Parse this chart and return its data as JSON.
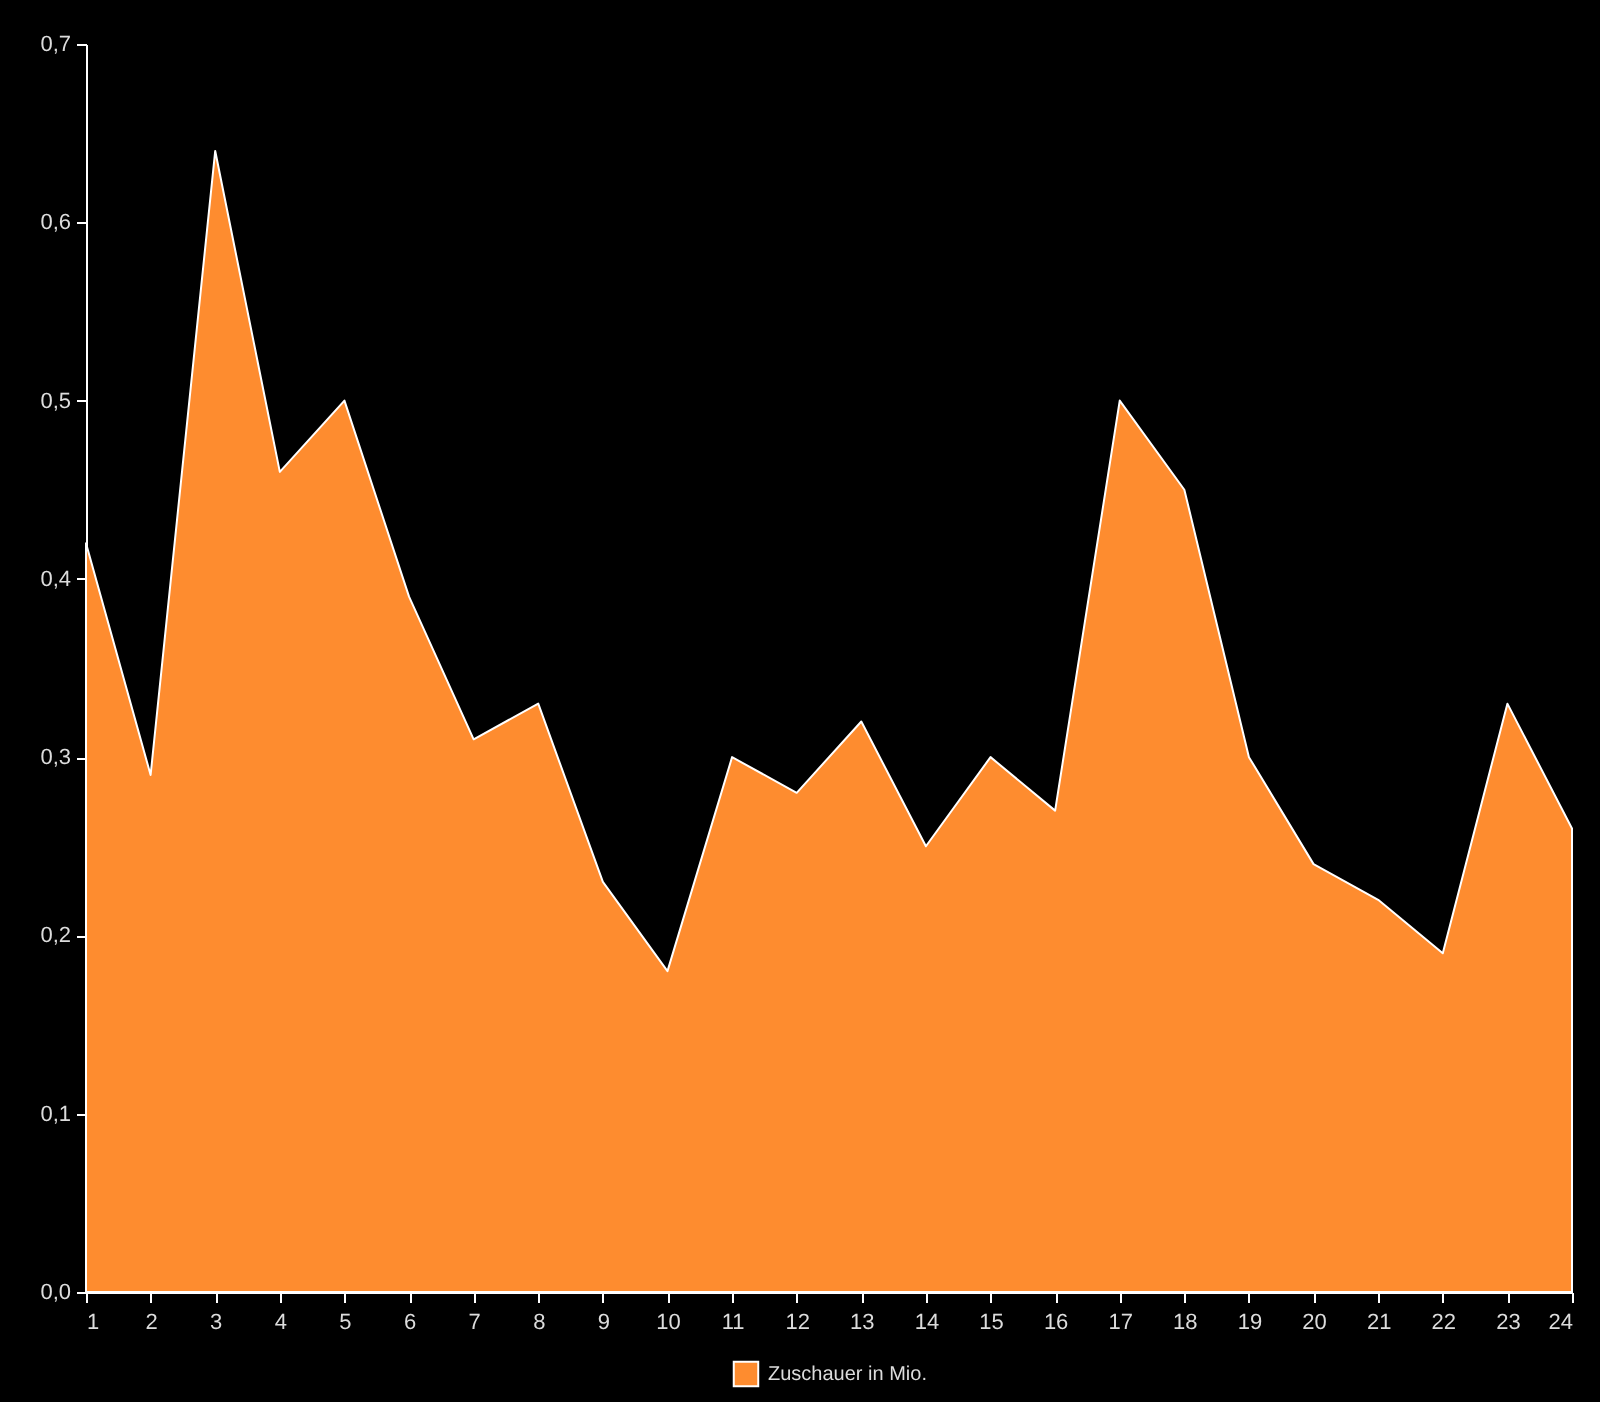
{
  "chart_data": {
    "type": "area",
    "x": [
      1,
      2,
      3,
      4,
      5,
      6,
      7,
      8,
      9,
      10,
      11,
      12,
      13,
      14,
      15,
      16,
      17,
      18,
      19,
      20,
      21,
      22,
      23,
      24
    ],
    "xlim": [
      1,
      24
    ],
    "xticks": [
      1,
      2,
      3,
      4,
      5,
      6,
      7,
      8,
      9,
      10,
      11,
      12,
      13,
      14,
      15,
      16,
      17,
      18,
      19,
      20,
      21,
      22,
      23,
      24
    ],
    "ylim": [
      0,
      0.7
    ],
    "yticks": [
      {
        "value": 0,
        "label": "0,0"
      },
      {
        "value": 0.1,
        "label": "0,1"
      },
      {
        "value": 0.2,
        "label": "0,2"
      },
      {
        "value": 0.3,
        "label": "0,3"
      },
      {
        "value": 0.4,
        "label": "0,4"
      },
      {
        "value": 0.5,
        "label": "0,5"
      },
      {
        "value": 0.6,
        "label": "0,6"
      },
      {
        "value": 0.7,
        "label": "0,7"
      }
    ],
    "series": [
      {
        "name": "Zuschauer in Mio.",
        "color": "#fe8c2f",
        "values": [
          0.42,
          0.29,
          0.64,
          0.46,
          0.5,
          0.39,
          0.31,
          0.33,
          0.23,
          0.18,
          0.3,
          0.28,
          0.32,
          0.25,
          0.3,
          0.27,
          0.5,
          0.45,
          0.3,
          0.24,
          0.22,
          0.19,
          0.33,
          0.26
        ]
      }
    ],
    "legend": "bottom",
    "grid": false
  }
}
